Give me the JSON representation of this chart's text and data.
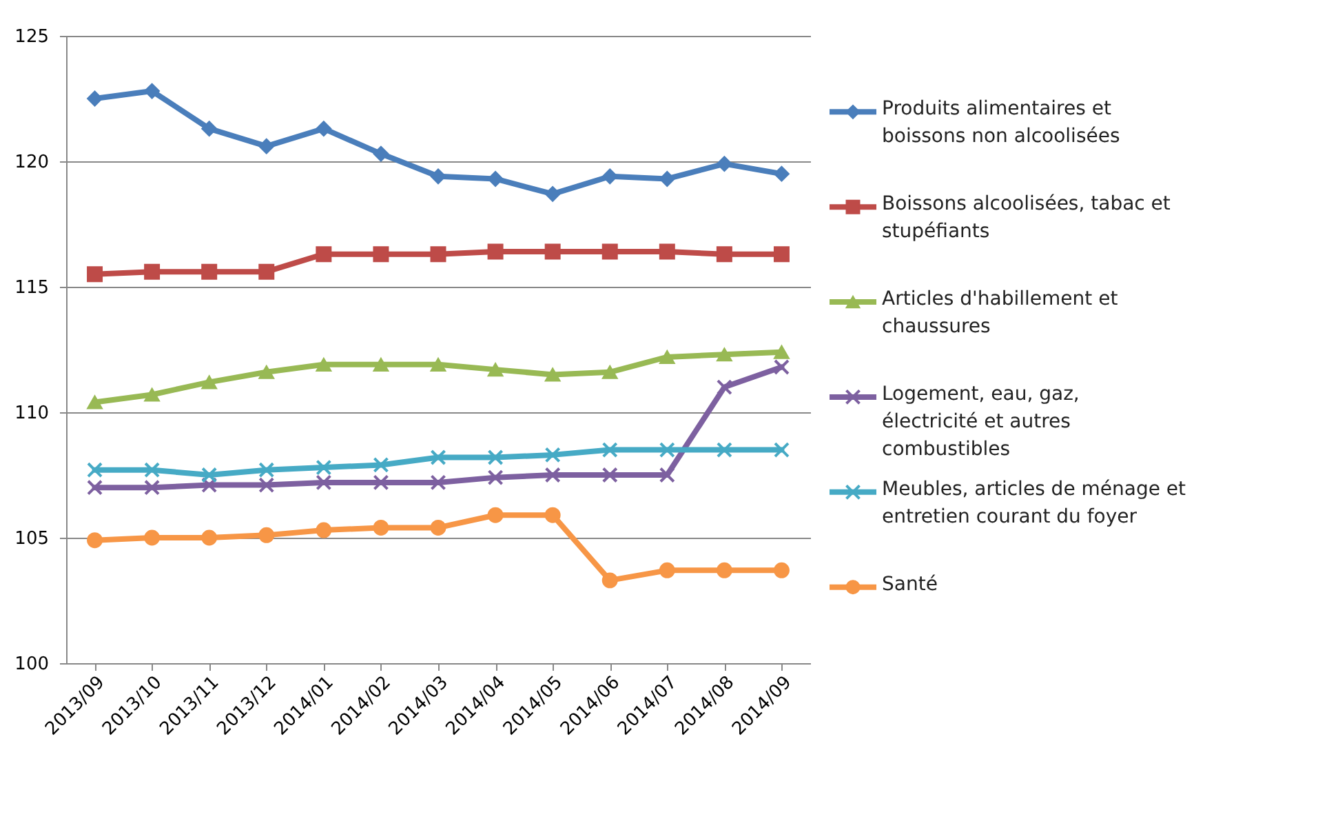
{
  "chart_data": {
    "type": "line",
    "categories": [
      "2013/09",
      "2013/10",
      "2013/11",
      "2013/12",
      "2014/01",
      "2014/02",
      "2014/03",
      "2014/04",
      "2014/05",
      "2014/06",
      "2014/07",
      "2014/08",
      "2014/09"
    ],
    "ylim": [
      100,
      125
    ],
    "yticks": [
      100,
      105,
      110,
      115,
      120,
      125
    ],
    "grid": "y",
    "legend": "right",
    "line_style": "solid",
    "series": [
      {
        "name": "Produits alimentaires  et boissons non alcoolisées",
        "color": "#4a7ebb",
        "marker": "diamond",
        "values": [
          122.5,
          122.8,
          121.3,
          120.6,
          121.3,
          120.3,
          119.4,
          119.3,
          118.7,
          119.4,
          119.3,
          119.9,
          119.5
        ]
      },
      {
        "name": "Boissons alcoolisées, tabac et stupéfiants",
        "color": "#be4b48",
        "marker": "square",
        "values": [
          115.5,
          115.6,
          115.6,
          115.6,
          116.3,
          116.3,
          116.3,
          116.4,
          116.4,
          116.4,
          116.4,
          116.3,
          116.3
        ]
      },
      {
        "name": "Articles d'habillement et chaussures",
        "color": "#98b954",
        "marker": "triangle",
        "values": [
          110.4,
          110.7,
          111.2,
          111.6,
          111.9,
          111.9,
          111.9,
          111.7,
          111.5,
          111.6,
          112.2,
          112.3,
          112.4
        ]
      },
      {
        "name": "Logement, eau, gaz, électricité et autres combustibles",
        "color": "#7d60a0",
        "marker": "cross",
        "values": [
          107.0,
          107.0,
          107.1,
          107.1,
          107.2,
          107.2,
          107.2,
          107.4,
          107.5,
          107.5,
          107.5,
          111.0,
          111.8
        ]
      },
      {
        "name": "Meubles, articles de ménage et entretien courant du foyer",
        "color": "#46aac5",
        "marker": "cross",
        "values": [
          107.7,
          107.7,
          107.5,
          107.7,
          107.8,
          107.9,
          108.2,
          108.2,
          108.3,
          108.5,
          108.5,
          108.5,
          108.5
        ]
      },
      {
        "name": "Santé",
        "color": "#f79646",
        "marker": "circle",
        "values": [
          104.9,
          105.0,
          105.0,
          105.1,
          105.3,
          105.4,
          105.4,
          105.9,
          105.9,
          103.3,
          103.7,
          103.7,
          103.7
        ]
      }
    ]
  }
}
